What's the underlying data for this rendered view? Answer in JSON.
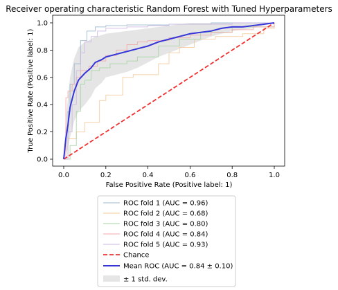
{
  "chart_data": {
    "type": "line",
    "title": "Receiver operating characteristic Random Forest with Tuned Hyperparameters",
    "xlabel": "False Positive Rate (Positive label: 1)",
    "ylabel": "True Positive Rate (Positive label: 1)",
    "xlim": [
      0,
      1
    ],
    "ylim": [
      0,
      1
    ],
    "xticks": [
      "0.0",
      "0.2",
      "0.4",
      "0.6",
      "0.8",
      "1.0"
    ],
    "yticks": [
      "0.0",
      "0.2",
      "0.4",
      "0.6",
      "0.8",
      "1.0"
    ],
    "grid": false,
    "legend_position": "below",
    "series": [
      {
        "name": "ROC fold 1 (AUC = 0.96)",
        "color": "#9ab5cc",
        "x": [
          0,
          0.02,
          0.03,
          0.05,
          0.08,
          0.11,
          0.15,
          0.2,
          0.3,
          0.5,
          0.7,
          0.85,
          1
        ],
        "y": [
          0,
          0.35,
          0.55,
          0.7,
          0.87,
          0.94,
          0.97,
          0.98,
          0.985,
          0.99,
          1,
          1,
          1
        ]
      },
      {
        "name": "ROC fold 2 (AUC = 0.68)",
        "color": "#f4c89a",
        "x": [
          0,
          0.02,
          0.06,
          0.1,
          0.17,
          0.2,
          0.28,
          0.33,
          0.4,
          0.45,
          0.5,
          0.55,
          0.62,
          0.72,
          0.85,
          0.95,
          1
        ],
        "y": [
          0,
          0.15,
          0.2,
          0.27,
          0.43,
          0.47,
          0.6,
          0.62,
          0.62,
          0.7,
          0.78,
          0.82,
          0.88,
          0.9,
          0.92,
          0.96,
          1
        ]
      },
      {
        "name": "ROC fold 3 (AUC = 0.80)",
        "color": "#a6d4a4",
        "x": [
          0,
          0.03,
          0.06,
          0.08,
          0.1,
          0.13,
          0.17,
          0.22,
          0.3,
          0.35,
          0.45,
          0.55,
          0.65,
          0.8,
          1
        ],
        "y": [
          0,
          0.1,
          0.35,
          0.55,
          0.58,
          0.65,
          0.67,
          0.7,
          0.72,
          0.75,
          0.83,
          0.88,
          0.93,
          0.97,
          1
        ]
      },
      {
        "name": "ROC fold 4 (AUC = 0.84)",
        "color": "#f2a8a8",
        "x": [
          0,
          0.01,
          0.02,
          0.04,
          0.06,
          0.08,
          0.12,
          0.16,
          0.2,
          0.25,
          0.3,
          0.35,
          0.4,
          0.5,
          0.6,
          0.7,
          0.8,
          0.9,
          1
        ],
        "y": [
          0,
          0.45,
          0.5,
          0.55,
          0.6,
          0.65,
          0.68,
          0.72,
          0.76,
          0.8,
          0.84,
          0.86,
          0.87,
          0.89,
          0.91,
          0.93,
          0.95,
          0.97,
          1
        ]
      },
      {
        "name": "ROC fold 5 (AUC = 0.93)",
        "color": "#cdb8e3",
        "x": [
          0,
          0.02,
          0.04,
          0.06,
          0.08,
          0.1,
          0.13,
          0.16,
          0.2,
          0.3,
          0.4,
          0.5,
          0.65,
          0.8,
          1
        ],
        "y": [
          0,
          0.2,
          0.4,
          0.65,
          0.78,
          0.86,
          0.9,
          0.94,
          0.96,
          0.97,
          0.98,
          0.99,
          0.99,
          1,
          1
        ]
      },
      {
        "name": "Chance",
        "color": "#f03030",
        "style": "dashed",
        "x": [
          0,
          1
        ],
        "y": [
          0,
          1
        ]
      },
      {
        "name": "Mean ROC (AUC = 0.84 ± 0.10)",
        "color": "#3535d8",
        "x": [
          0,
          0.01,
          0.02,
          0.03,
          0.05,
          0.07,
          0.1,
          0.13,
          0.15,
          0.18,
          0.2,
          0.25,
          0.3,
          0.35,
          0.4,
          0.45,
          0.5,
          0.55,
          0.6,
          0.65,
          0.7,
          0.75,
          0.8,
          0.85,
          0.9,
          0.95,
          1
        ],
        "y": [
          0,
          0.15,
          0.25,
          0.38,
          0.5,
          0.58,
          0.63,
          0.67,
          0.71,
          0.73,
          0.75,
          0.77,
          0.79,
          0.81,
          0.83,
          0.86,
          0.88,
          0.9,
          0.92,
          0.93,
          0.94,
          0.96,
          0.97,
          0.97,
          0.98,
          0.99,
          1
        ]
      }
    ],
    "band": {
      "name": "± 1 std. dev.",
      "color": "#bfbfbf",
      "x": [
        0,
        0.01,
        0.02,
        0.03,
        0.05,
        0.07,
        0.1,
        0.13,
        0.15,
        0.18,
        0.2,
        0.25,
        0.3,
        0.35,
        0.4,
        0.45,
        0.5,
        0.55,
        0.6,
        0.65,
        0.7,
        0.75,
        0.8,
        0.85,
        0.9,
        0.95,
        1
      ],
      "upper": [
        0,
        0.3,
        0.45,
        0.6,
        0.74,
        0.82,
        0.86,
        0.88,
        0.9,
        0.91,
        0.92,
        0.93,
        0.94,
        0.95,
        0.96,
        0.97,
        0.98,
        0.99,
        1,
        1,
        1,
        1,
        1,
        1,
        1,
        1,
        1
      ],
      "lower": [
        0,
        0.03,
        0.08,
        0.16,
        0.28,
        0.35,
        0.4,
        0.46,
        0.52,
        0.56,
        0.6,
        0.62,
        0.64,
        0.67,
        0.71,
        0.75,
        0.78,
        0.81,
        0.84,
        0.87,
        0.9,
        0.92,
        0.94,
        0.95,
        0.96,
        0.98,
        1
      ]
    }
  }
}
